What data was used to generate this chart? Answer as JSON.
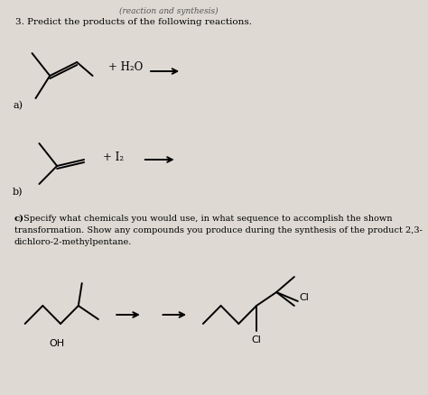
{
  "bg_color": "#dedad3",
  "title_italic": "(reaction and synthesis)",
  "title_main": "3. Predict the products of the following reactions.",
  "label_a": "a)",
  "label_b": "b)",
  "reagent_a": "+ H₂O",
  "reagent_b": "+ I₂",
  "part_c_bold": "c)",
  "part_c_line1": " Specify what chemicals you would use, in what sequence to accomplish the shown",
  "part_c_line2": "transformation. Show any compounds you produce during the synthesis of the product 2,3-",
  "part_c_line3": "dichloro-2-methylpentane.",
  "oh_label": "OH",
  "cl_label1": "Cl",
  "cl_label2": "Cl",
  "lw": 1.4
}
